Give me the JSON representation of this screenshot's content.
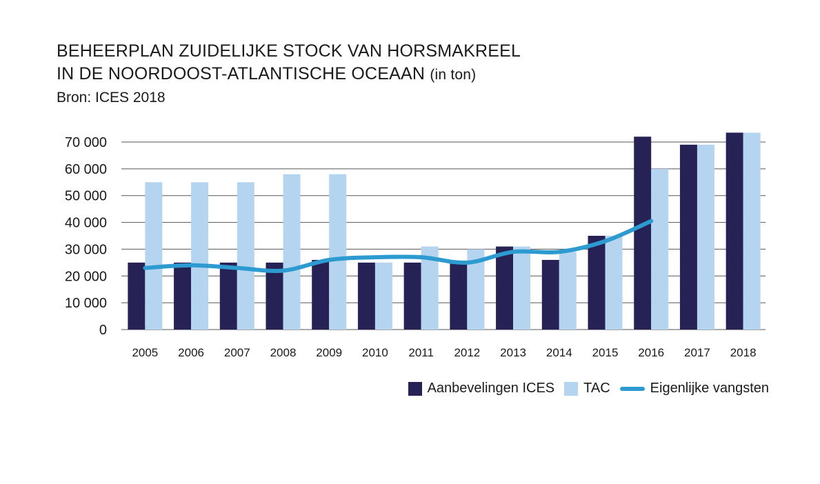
{
  "title_line1": "BEHEERPLAN ZUIDELIJKE STOCK VAN HORSMAKREEL",
  "title_line2": "IN DE NOORDOOST-ATLANTISCHE OCEAAN",
  "title_unit": "(in ton)",
  "source": "Bron: ICES 2018",
  "colors": {
    "ices": "#262256",
    "tac": "#b5d4ef",
    "catch": "#2e9bd0",
    "grid": "#555555"
  },
  "chart_data": {
    "type": "bar",
    "categories": [
      "2005",
      "2006",
      "2007",
      "2008",
      "2009",
      "2010",
      "2011",
      "2012",
      "2013",
      "2014",
      "2015",
      "2016",
      "2017",
      "2018"
    ],
    "y_ticks": [
      0,
      10000,
      20000,
      30000,
      40000,
      50000,
      60000,
      70000
    ],
    "y_tick_labels": [
      "0",
      "10 000",
      "20 000",
      "30 000",
      "40 000",
      "50 000",
      "60 000",
      "70 000"
    ],
    "ylim": [
      0,
      70000
    ],
    "grid": true,
    "legend_position": "bottom-right",
    "series": [
      {
        "name": "Aanbevelingen ICES",
        "type": "bar",
        "values": [
          25000,
          25000,
          25000,
          25000,
          26000,
          25000,
          25000,
          25000,
          31000,
          26000,
          35000,
          72000,
          69000,
          73500
        ]
      },
      {
        "name": "TAC",
        "type": "bar",
        "values": [
          55000,
          55000,
          55000,
          58000,
          58000,
          25000,
          31000,
          30000,
          31000,
          29000,
          35000,
          60000,
          69000,
          73500
        ]
      },
      {
        "name": "Eigenlijke vangsten",
        "type": "line",
        "values": [
          23000,
          24000,
          23000,
          22000,
          26000,
          27000,
          27000,
          25000,
          29000,
          29000,
          33000,
          40500,
          null,
          null
        ]
      }
    ]
  }
}
